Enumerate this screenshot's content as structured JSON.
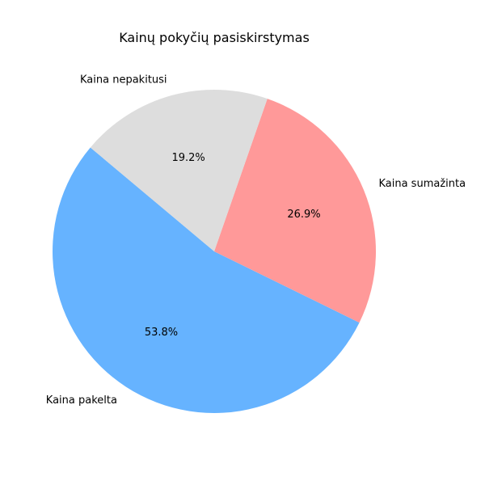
{
  "chart_data": {
    "type": "pie",
    "title": "Kainų pokyčių pasiskirstymas",
    "categories": [
      "Kaina pakelta",
      "Kaina sumažinta",
      "Kaina nepakitusi"
    ],
    "values": [
      53.8,
      26.9,
      19.2
    ],
    "percent_labels": [
      "53.8%",
      "26.9%",
      "19.2%"
    ],
    "colors": [
      "#66b3ff",
      "#ff9999",
      "#dddddd"
    ],
    "start_angle_deg": 140,
    "direction": "counterclockwise",
    "legend": "none"
  }
}
